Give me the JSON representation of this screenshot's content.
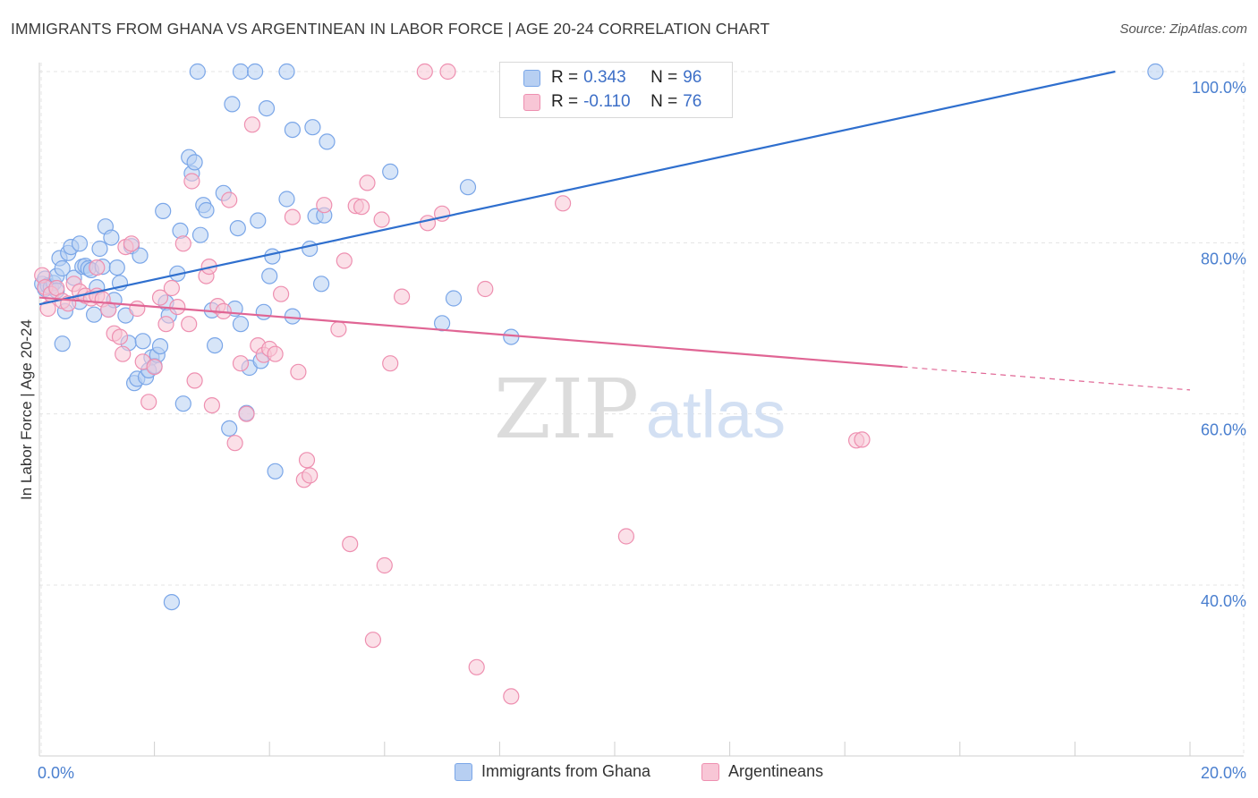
{
  "title": "IMMIGRANTS FROM GHANA VS ARGENTINEAN IN LABOR FORCE | AGE 20-24 CORRELATION CHART",
  "source": "Source: ZipAtlas.com",
  "watermark": {
    "zip": "ZIP",
    "atlas": "atlas"
  },
  "chart_data": {
    "type": "scatter",
    "xlabel": "",
    "ylabel": "In Labor Force | Age 20-24",
    "xlim": [
      0,
      20
    ],
    "ylim": [
      20,
      102
    ],
    "x_tick_labels": [
      "0.0%",
      "20.0%"
    ],
    "y_ticks": [
      40,
      60,
      80,
      100
    ],
    "y_tick_labels": [
      "40.0%",
      "60.0%",
      "80.0%",
      "100.0%"
    ],
    "grid": true,
    "legend": [
      {
        "name": "Immigrants from Ghana",
        "r_label": "R = ",
        "r_value": "0.343",
        "n_label": "N = ",
        "n_value": "96",
        "color": "#7aa6e8",
        "fill": "#b7cff2"
      },
      {
        "name": "Argentineans",
        "r_label": "R = ",
        "r_value": "-0.110",
        "n_label": "N = ",
        "n_value": "76",
        "color": "#ee8fb0",
        "fill": "#f8c6d6"
      }
    ],
    "series": [
      {
        "name": "Immigrants from Ghana",
        "color": "#5b8fde",
        "trend": {
          "x0": 0.0,
          "y0": 72.8,
          "x1": 18.7,
          "y1": 100.0,
          "color": "#2f6fce"
        },
        "points": [
          [
            0.05,
            75.2
          ],
          [
            0.1,
            75.8
          ],
          [
            0.1,
            74.6
          ],
          [
            0.15,
            75.0
          ],
          [
            0.2,
            74.8
          ],
          [
            0.25,
            75.3
          ],
          [
            0.3,
            76.1
          ],
          [
            0.3,
            74.4
          ],
          [
            0.35,
            78.2
          ],
          [
            0.4,
            77.0
          ],
          [
            0.4,
            68.2
          ],
          [
            0.45,
            72.0
          ],
          [
            0.5,
            78.8
          ],
          [
            0.55,
            79.5
          ],
          [
            0.6,
            75.9
          ],
          [
            0.7,
            73.1
          ],
          [
            0.7,
            79.9
          ],
          [
            0.75,
            77.2
          ],
          [
            0.8,
            77.3
          ],
          [
            0.85,
            77.0
          ],
          [
            0.9,
            76.8
          ],
          [
            0.95,
            71.6
          ],
          [
            1.0,
            74.8
          ],
          [
            1.05,
            79.3
          ],
          [
            1.1,
            77.2
          ],
          [
            1.15,
            81.9
          ],
          [
            1.2,
            72.2
          ],
          [
            1.25,
            80.6
          ],
          [
            1.3,
            73.3
          ],
          [
            1.35,
            77.1
          ],
          [
            1.4,
            75.3
          ],
          [
            1.5,
            71.5
          ],
          [
            1.55,
            68.3
          ],
          [
            1.6,
            79.6
          ],
          [
            1.65,
            63.6
          ],
          [
            1.7,
            64.1
          ],
          [
            1.75,
            78.5
          ],
          [
            1.8,
            68.5
          ],
          [
            1.85,
            64.3
          ],
          [
            1.9,
            65.1
          ],
          [
            1.95,
            66.6
          ],
          [
            2.0,
            65.6
          ],
          [
            2.05,
            66.9
          ],
          [
            2.1,
            67.9
          ],
          [
            2.15,
            83.7
          ],
          [
            2.2,
            73.0
          ],
          [
            2.25,
            71.5
          ],
          [
            2.3,
            38.0
          ],
          [
            2.4,
            76.4
          ],
          [
            2.45,
            81.4
          ],
          [
            2.5,
            61.2
          ],
          [
            2.6,
            90.0
          ],
          [
            2.65,
            88.1
          ],
          [
            2.7,
            89.4
          ],
          [
            2.75,
            100.0
          ],
          [
            2.8,
            80.9
          ],
          [
            2.85,
            84.4
          ],
          [
            2.9,
            83.8
          ],
          [
            3.0,
            72.1
          ],
          [
            3.05,
            68.0
          ],
          [
            3.2,
            85.8
          ],
          [
            3.3,
            58.3
          ],
          [
            3.35,
            96.2
          ],
          [
            3.4,
            72.3
          ],
          [
            3.45,
            81.7
          ],
          [
            3.5,
            70.5
          ],
          [
            3.5,
            100.0
          ],
          [
            3.6,
            60.1
          ],
          [
            3.65,
            65.4
          ],
          [
            3.75,
            100.0
          ],
          [
            3.8,
            82.6
          ],
          [
            3.85,
            66.2
          ],
          [
            3.9,
            71.9
          ],
          [
            3.95,
            95.7
          ],
          [
            4.0,
            76.1
          ],
          [
            4.05,
            78.4
          ],
          [
            4.1,
            53.3
          ],
          [
            4.3,
            85.1
          ],
          [
            4.3,
            100.0
          ],
          [
            4.4,
            93.2
          ],
          [
            4.4,
            71.4
          ],
          [
            4.7,
            79.3
          ],
          [
            4.75,
            93.5
          ],
          [
            4.8,
            83.1
          ],
          [
            4.9,
            75.2
          ],
          [
            4.95,
            83.2
          ],
          [
            5.0,
            91.8
          ],
          [
            6.1,
            88.3
          ],
          [
            7.0,
            70.6
          ],
          [
            7.2,
            73.5
          ],
          [
            7.45,
            86.5
          ],
          [
            8.2,
            69.0
          ],
          [
            19.4,
            100.0
          ]
        ]
      },
      {
        "name": "Argentineans",
        "color": "#ea85a8",
        "trend": {
          "x0": 0.0,
          "y0": 73.6,
          "x1": 15.0,
          "y1": 65.5,
          "x2": 20.0,
          "y2": 62.8,
          "color": "#e06594"
        },
        "points": [
          [
            0.05,
            76.2
          ],
          [
            0.1,
            74.8
          ],
          [
            0.15,
            72.3
          ],
          [
            0.2,
            74.0
          ],
          [
            0.3,
            74.7
          ],
          [
            0.4,
            73.2
          ],
          [
            0.5,
            72.9
          ],
          [
            0.6,
            75.2
          ],
          [
            0.7,
            74.3
          ],
          [
            0.8,
            73.8
          ],
          [
            0.9,
            73.5
          ],
          [
            1.0,
            77.1
          ],
          [
            1.0,
            73.8
          ],
          [
            1.1,
            73.4
          ],
          [
            1.2,
            72.2
          ],
          [
            1.3,
            69.4
          ],
          [
            1.4,
            69.0
          ],
          [
            1.45,
            67.0
          ],
          [
            1.5,
            79.5
          ],
          [
            1.6,
            79.9
          ],
          [
            1.7,
            72.3
          ],
          [
            1.8,
            66.1
          ],
          [
            1.9,
            61.4
          ],
          [
            2.0,
            65.5
          ],
          [
            2.1,
            73.6
          ],
          [
            2.2,
            70.5
          ],
          [
            2.3,
            74.7
          ],
          [
            2.4,
            72.5
          ],
          [
            2.5,
            79.9
          ],
          [
            2.6,
            70.5
          ],
          [
            2.65,
            87.2
          ],
          [
            2.7,
            63.9
          ],
          [
            2.9,
            76.1
          ],
          [
            2.95,
            77.2
          ],
          [
            3.0,
            61.0
          ],
          [
            3.1,
            72.6
          ],
          [
            3.2,
            72.0
          ],
          [
            3.3,
            85.0
          ],
          [
            3.4,
            56.6
          ],
          [
            3.5,
            65.9
          ],
          [
            3.6,
            60.0
          ],
          [
            3.7,
            93.8
          ],
          [
            3.8,
            68.0
          ],
          [
            3.9,
            66.9
          ],
          [
            4.0,
            67.6
          ],
          [
            4.1,
            67.0
          ],
          [
            4.2,
            74.0
          ],
          [
            4.4,
            83.0
          ],
          [
            4.5,
            64.9
          ],
          [
            4.6,
            52.3
          ],
          [
            4.65,
            54.6
          ],
          [
            4.7,
            52.8
          ],
          [
            4.95,
            84.4
          ],
          [
            5.2,
            69.9
          ],
          [
            5.3,
            77.9
          ],
          [
            5.4,
            44.8
          ],
          [
            5.5,
            84.3
          ],
          [
            5.6,
            84.2
          ],
          [
            5.7,
            87.0
          ],
          [
            5.8,
            33.6
          ],
          [
            5.95,
            82.7
          ],
          [
            6.0,
            42.3
          ],
          [
            6.1,
            65.9
          ],
          [
            6.3,
            73.7
          ],
          [
            6.7,
            100.0
          ],
          [
            6.75,
            82.3
          ],
          [
            7.0,
            83.4
          ],
          [
            7.1,
            100.0
          ],
          [
            7.6,
            30.4
          ],
          [
            7.75,
            74.6
          ],
          [
            8.2,
            27.0
          ],
          [
            9.1,
            84.6
          ],
          [
            10.2,
            45.7
          ],
          [
            14.2,
            56.9
          ],
          [
            14.3,
            57.0
          ],
          [
            9.9,
            100.0
          ]
        ]
      }
    ]
  }
}
